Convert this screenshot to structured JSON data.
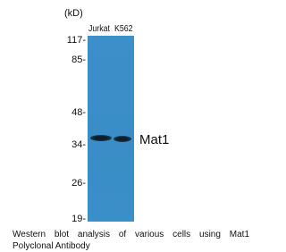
{
  "unit": "(kD)",
  "lanes": [
    "Jurkat",
    "K562"
  ],
  "markers": [
    "117-",
    "85-",
    "48-",
    "34-",
    "26-",
    "19-"
  ],
  "band_label": "Mat1",
  "caption": [
    "Western blot analysis of various cells using Mat1",
    "Polyclonal Antibody"
  ]
}
